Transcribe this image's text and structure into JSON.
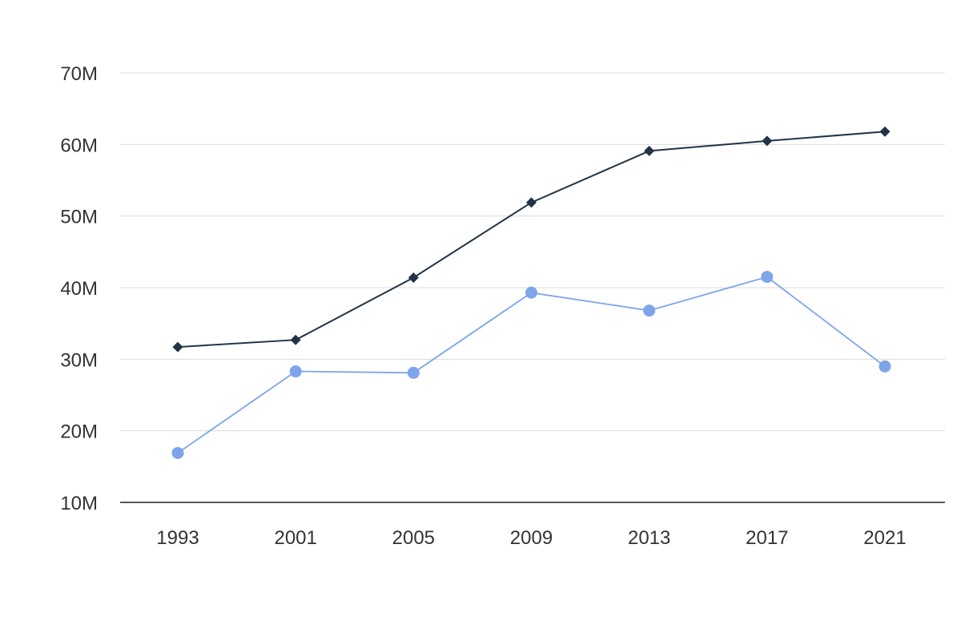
{
  "chart_data": {
    "type": "line",
    "title": "",
    "xlabel": "",
    "ylabel": "",
    "categories": [
      "1993",
      "2001",
      "2005",
      "2009",
      "2013",
      "2017",
      "2021"
    ],
    "y_ticks": [
      "10M",
      "20M",
      "30M",
      "40M",
      "50M",
      "60M",
      "70M"
    ],
    "y_tick_values": [
      10000000,
      20000000,
      30000000,
      40000000,
      50000000,
      60000000,
      70000000
    ],
    "ylim": [
      10000000,
      70000000
    ],
    "grid": true,
    "legend": "none",
    "series": [
      {
        "marker": "diamond",
        "color": "#223347",
        "values": [
          31700000,
          32700000,
          41400000,
          51900000,
          59100000,
          60500000,
          61800000
        ]
      },
      {
        "marker": "circle",
        "color": "#7ea4ea",
        "values": [
          16900000,
          28300000,
          28100000,
          39300000,
          36800000,
          41500000,
          29000000
        ]
      }
    ]
  }
}
